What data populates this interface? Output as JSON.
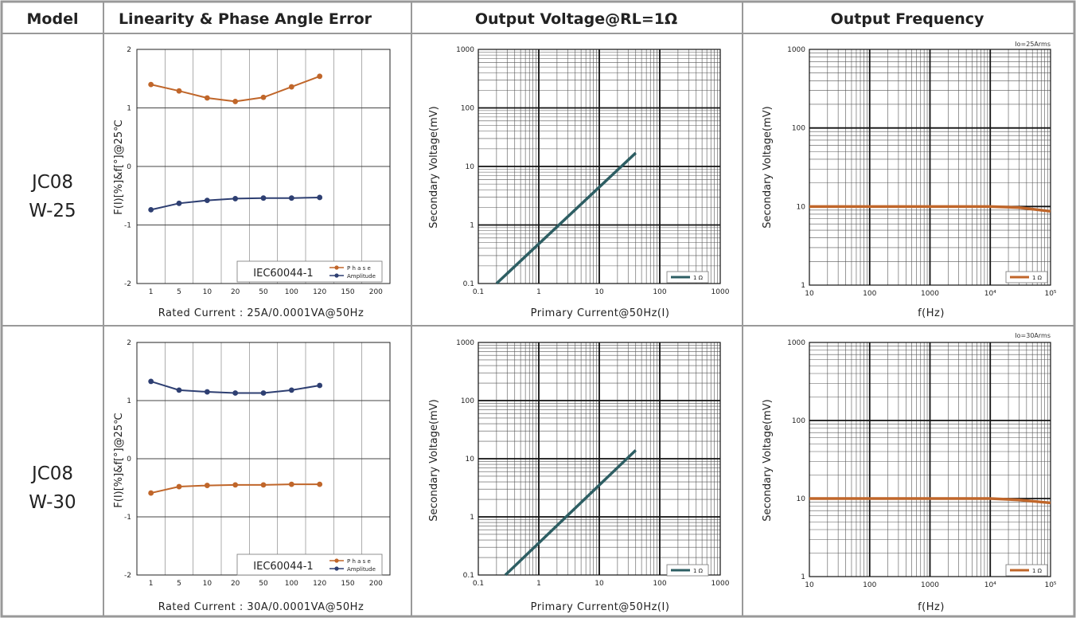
{
  "header": {
    "model": "Model",
    "linearity": "Linearity & Phase Angle Error",
    "output_voltage": "Output Voltage@RL=1Ω",
    "output_frequency": "Output Frequency"
  },
  "colors": {
    "border": "#999999",
    "phase": "#c0662a",
    "amplitude": "#2e3f72",
    "voltage_line": "#2d5e63",
    "frequency_line": "#c0662a"
  },
  "rows": [
    {
      "model_line1": "JC08",
      "model_line2": "W-25",
      "linearity": {
        "ylabel": "F(I)[%]&f[°]@25℃",
        "xlabel": "Rated Current : 25A/0.0001VA@50Hz",
        "legend_std": "IEC60044-1",
        "legend_series": [
          "P h a s e",
          "Amplitude"
        ]
      },
      "voltage": {
        "ylabel": "Secondary Voltage(mV)",
        "xlabel": "Primary Current@50Hz(I)",
        "legend": "1 Ω"
      },
      "frequency": {
        "ylabel": "Secondary Voltage(mV)",
        "xlabel": "f(Hz)",
        "legend": "1 Ω",
        "note": "Io=25Arms"
      }
    },
    {
      "model_line1": "JC08",
      "model_line2": "W-30",
      "linearity": {
        "ylabel": "F(I)[%]&f[°]@25℃",
        "xlabel": "Rated Current : 30A/0.0001VA@50Hz",
        "legend_std": "IEC60044-1",
        "legend_series": [
          "P h a s e",
          "Amplitude"
        ]
      },
      "voltage": {
        "ylabel": "Secondary Voltage(mV)",
        "xlabel": "Primary Current@50Hz(I)",
        "legend": "1 Ω"
      },
      "frequency": {
        "ylabel": "Secondary Voltage(mV)",
        "xlabel": "f(Hz)",
        "legend": "1 Ω",
        "note": "Io=30Arms"
      }
    }
  ],
  "chart_data": [
    {
      "id": "lin-1",
      "type": "line",
      "xticks": [
        "1",
        "5",
        "10",
        "20",
        "50",
        "100",
        "120",
        "150",
        "200"
      ],
      "yticks": [
        "2",
        "1",
        "0",
        "-1",
        "-2"
      ],
      "ylim": [
        -2,
        2
      ],
      "series": [
        {
          "name": "Phase",
          "color": "#c0662a",
          "values": [
            1.4,
            1.29,
            1.17,
            1.11,
            1.18,
            1.36,
            1.54
          ]
        },
        {
          "name": "Amplitude",
          "color": "#2e3f72",
          "values": [
            -0.74,
            -0.63,
            -0.58,
            -0.55,
            -0.54,
            -0.54,
            -0.53
          ]
        }
      ]
    },
    {
      "id": "volt-1",
      "type": "line",
      "xscale": "log",
      "yscale": "log",
      "xlim": [
        0.1,
        1000
      ],
      "ylim": [
        0.1,
        1000
      ],
      "xticks": [
        "0.1",
        "1",
        "10",
        "100",
        "1000"
      ],
      "yticks": [
        "1000",
        "100",
        "10",
        "1",
        "0.1"
      ],
      "series": [
        {
          "name": "1 Ω",
          "color": "#2d5e63",
          "x": [
            0.2,
            40
          ],
          "y": [
            0.1,
            17
          ]
        }
      ]
    },
    {
      "id": "freq-1",
      "type": "line",
      "xscale": "log",
      "yscale": "log",
      "xlim": [
        10,
        100000
      ],
      "ylim": [
        1,
        1000
      ],
      "xticks": [
        "10",
        "100",
        "1000",
        "10⁴",
        "10⁵"
      ],
      "yticks": [
        "1000",
        "100",
        "10",
        "1"
      ],
      "series": [
        {
          "name": "1 Ω",
          "color": "#c0662a",
          "x": [
            10,
            100,
            1000,
            10000,
            30000,
            100000
          ],
          "y": [
            10,
            10,
            10,
            10,
            9.7,
            8.7
          ]
        }
      ]
    },
    {
      "id": "lin-2",
      "type": "line",
      "xticks": [
        "1",
        "5",
        "10",
        "20",
        "50",
        "100",
        "120",
        "150",
        "200"
      ],
      "yticks": [
        "2",
        "1",
        "0",
        "-1",
        "-2"
      ],
      "ylim": [
        -2,
        2
      ],
      "series": [
        {
          "name": "Phase",
          "color": "#c0662a",
          "values": [
            -0.59,
            -0.48,
            -0.46,
            -0.45,
            -0.45,
            -0.44,
            -0.44
          ]
        },
        {
          "name": "Amplitude",
          "color": "#2e3f72",
          "values": [
            1.33,
            1.18,
            1.15,
            1.13,
            1.13,
            1.18,
            1.26
          ]
        }
      ]
    },
    {
      "id": "volt-2",
      "type": "line",
      "xscale": "log",
      "yscale": "log",
      "xlim": [
        0.1,
        1000
      ],
      "ylim": [
        0.1,
        1000
      ],
      "xticks": [
        "0.1",
        "1",
        "10",
        "100",
        "1000"
      ],
      "yticks": [
        "1000",
        "100",
        "10",
        "1",
        "0.1"
      ],
      "series": [
        {
          "name": "1 Ω",
          "color": "#2d5e63",
          "x": [
            0.28,
            40
          ],
          "y": [
            0.1,
            14
          ]
        }
      ]
    },
    {
      "id": "freq-2",
      "type": "line",
      "xscale": "log",
      "yscale": "log",
      "xlim": [
        10,
        100000
      ],
      "ylim": [
        1,
        1000
      ],
      "xticks": [
        "10",
        "100",
        "1000",
        "10⁴",
        "10⁵"
      ],
      "yticks": [
        "1000",
        "100",
        "10",
        "1"
      ],
      "series": [
        {
          "name": "1 Ω",
          "color": "#c0662a",
          "x": [
            10,
            100,
            1000,
            10000,
            30000,
            100000
          ],
          "y": [
            10,
            10,
            10,
            10,
            9.6,
            8.8
          ]
        }
      ]
    }
  ]
}
